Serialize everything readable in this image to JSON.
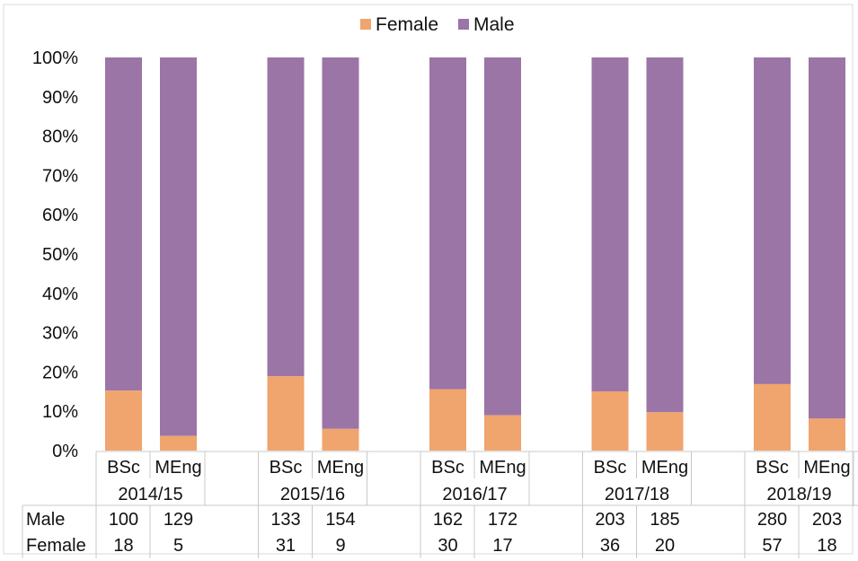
{
  "chart_data": {
    "type": "bar",
    "stacked": true,
    "normalized": true,
    "legend": {
      "placement": "top",
      "items": [
        {
          "label": "Female",
          "color": "#f0a46e"
        },
        {
          "label": "Male",
          "color": "#9b75a6"
        }
      ]
    },
    "y_ticks": [
      "0%",
      "10%",
      "20%",
      "30%",
      "40%",
      "50%",
      "60%",
      "70%",
      "80%",
      "90%",
      "100%"
    ],
    "ylim": [
      0,
      100
    ],
    "grid": false,
    "groups": [
      {
        "year": "2014/15",
        "bars": [
          {
            "label": "BSc",
            "male": 100,
            "female": 18
          },
          {
            "label": "MEng",
            "male": 129,
            "female": 5
          }
        ]
      },
      {
        "year": "2015/16",
        "bars": [
          {
            "label": "BSc",
            "male": 133,
            "female": 31
          },
          {
            "label": "MEng",
            "male": 154,
            "female": 9
          }
        ]
      },
      {
        "year": "2016/17",
        "bars": [
          {
            "label": "BSc",
            "male": 162,
            "female": 30
          },
          {
            "label": "MEng",
            "male": 172,
            "female": 17
          }
        ]
      },
      {
        "year": "2017/18",
        "bars": [
          {
            "label": "BSc",
            "male": 203,
            "female": 36
          },
          {
            "label": "MEng",
            "male": 185,
            "female": 20
          }
        ]
      },
      {
        "year": "2018/19",
        "bars": [
          {
            "label": "BSc",
            "male": 280,
            "female": 57
          },
          {
            "label": "MEng",
            "male": 203,
            "female": 18
          }
        ]
      }
    ],
    "table": {
      "row_labels": [
        "Male",
        "Female"
      ]
    }
  }
}
